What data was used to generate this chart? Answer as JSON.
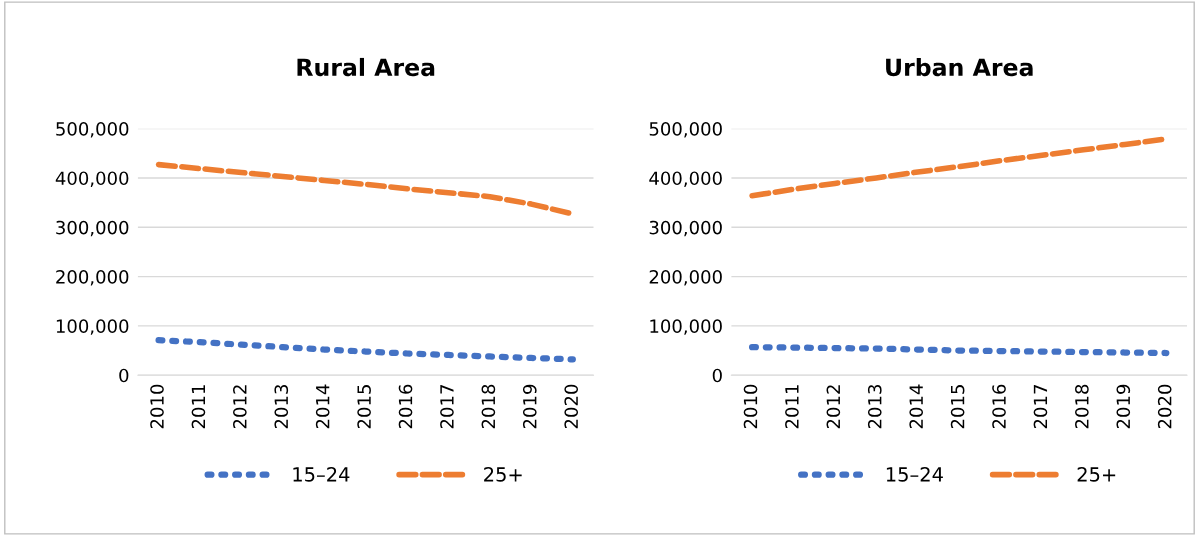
{
  "chart_data": [
    {
      "type": "line",
      "title": "Rural Area",
      "categories": [
        "2010",
        "2011",
        "2012",
        "2013",
        "2014",
        "2015",
        "2016",
        "2017",
        "2018",
        "2019",
        "2020"
      ],
      "series": [
        {
          "name": "15–24",
          "color": "#4472c4",
          "line_style": "dotted",
          "values": [
            71000,
            67000,
            62000,
            57000,
            52000,
            48000,
            44000,
            41000,
            38000,
            35000,
            32000
          ]
        },
        {
          "name": "25+",
          "color": "#ed7d31",
          "line_style": "dashed",
          "values": [
            427000,
            419000,
            411000,
            403000,
            395000,
            387000,
            378000,
            370000,
            362000,
            347000,
            327000
          ]
        }
      ],
      "ylim": [
        0,
        500000
      ],
      "yticks": [
        {
          "value": 0,
          "label": "0"
        },
        {
          "value": 100000,
          "label": "100,000"
        },
        {
          "value": 200000,
          "label": "200,000"
        },
        {
          "value": 300000,
          "label": "300,000"
        },
        {
          "value": 400000,
          "label": "400,000"
        },
        {
          "value": 500000,
          "label": "500,000"
        }
      ],
      "grid": "y",
      "legend": "bottom",
      "marker": "none"
    },
    {
      "type": "line",
      "title": "Urban Area",
      "categories": [
        "2010",
        "2011",
        "2012",
        "2013",
        "2014",
        "2015",
        "2016",
        "2017",
        "2018",
        "2019",
        "2020"
      ],
      "series": [
        {
          "name": "15–24",
          "color": "#4472c4",
          "line_style": "dotted",
          "values": [
            57000,
            56000,
            55000,
            54000,
            52000,
            50000,
            49000,
            48000,
            47000,
            46000,
            45000
          ]
        },
        {
          "name": "25+",
          "color": "#ed7d31",
          "line_style": "dashed",
          "values": [
            364000,
            377000,
            389000,
            400000,
            412000,
            423000,
            435000,
            446000,
            457000,
            468000,
            479000
          ]
        }
      ],
      "ylim": [
        0,
        500000
      ],
      "yticks": [
        {
          "value": 0,
          "label": "0"
        },
        {
          "value": 100000,
          "label": "100,000"
        },
        {
          "value": 200000,
          "label": "200,000"
        },
        {
          "value": 300000,
          "label": "300,000"
        },
        {
          "value": 400000,
          "label": "400,000"
        },
        {
          "value": 500000,
          "label": "500,000"
        }
      ],
      "grid": "y",
      "legend": "bottom",
      "marker": "none"
    }
  ]
}
